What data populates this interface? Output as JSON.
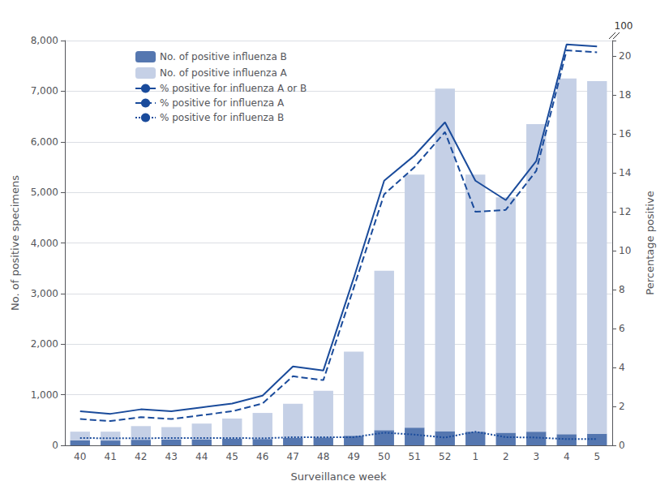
{
  "chart_data": {
    "type": "bar",
    "xlabel": "Surveillance week",
    "ylabel": "No. of positive specimens",
    "y2label": "Percentage positive",
    "categories": [
      "40",
      "41",
      "42",
      "43",
      "44",
      "45",
      "46",
      "47",
      "48",
      "49",
      "50",
      "51",
      "52",
      "1",
      "2",
      "3",
      "4",
      "5"
    ],
    "stacked": true,
    "series": [
      {
        "name": "No. of positive influenza B",
        "type": "bar",
        "color": "#5577b0",
        "values": [
          100,
          95,
          110,
          115,
          120,
          130,
          125,
          145,
          155,
          190,
          300,
          350,
          280,
          270,
          250,
          270,
          220,
          230
        ]
      },
      {
        "name": "No. of positive influenza A",
        "type": "bar",
        "color": "#c5d0e6",
        "values": [
          170,
          175,
          270,
          245,
          310,
          400,
          515,
          675,
          925,
          1660,
          3150,
          5000,
          6770,
          5080,
          4650,
          6080,
          7030,
          6970
        ]
      },
      {
        "name": "% positive for influenza A or B",
        "type": "line",
        "axis": "y2",
        "color": "#1a4b9b",
        "line_style": "solid",
        "values": [
          1.75,
          1.62,
          1.85,
          1.75,
          1.95,
          2.15,
          2.55,
          4.05,
          3.85,
          8.6,
          13.6,
          14.9,
          16.6,
          13.6,
          12.6,
          14.6,
          20.6,
          20.5
        ]
      },
      {
        "name": "% positive for influenza A",
        "type": "line",
        "axis": "y2",
        "color": "#1a4b9b",
        "line_style": "dashed",
        "values": [
          1.35,
          1.25,
          1.45,
          1.35,
          1.55,
          1.75,
          2.15,
          3.55,
          3.35,
          8.1,
          12.9,
          14.3,
          16.1,
          12.0,
          12.1,
          14.1,
          20.3,
          20.2
        ]
      },
      {
        "name": "% positive for influenza B",
        "type": "line",
        "axis": "y2",
        "color": "#1a4b9b",
        "line_style": "dotted",
        "values": [
          0.38,
          0.36,
          0.36,
          0.38,
          0.38,
          0.38,
          0.36,
          0.42,
          0.42,
          0.42,
          0.65,
          0.55,
          0.4,
          0.7,
          0.42,
          0.4,
          0.32,
          0.32
        ]
      }
    ],
    "ylim": [
      0,
      8000
    ],
    "yticks": [
      0,
      {
        "value": 1000,
        "label": "1,000"
      },
      {
        "value": 2000,
        "label": "2,000"
      },
      {
        "value": 3000,
        "label": "3,000"
      },
      {
        "value": 4000,
        "label": "4,000"
      },
      {
        "value": 5000,
        "label": "5,000"
      },
      {
        "value": 6000,
        "label": "6,000"
      },
      {
        "value": 7000,
        "label": "7,000"
      },
      {
        "value": 8000,
        "label": "8,000"
      }
    ],
    "y2lim": [
      0,
      20.8
    ],
    "y2ticks": [
      0,
      2,
      4,
      6,
      8,
      10,
      12,
      14,
      16,
      18,
      20
    ],
    "grid": true,
    "legend": "upper left",
    "annotations": [
      "100"
    ]
  }
}
